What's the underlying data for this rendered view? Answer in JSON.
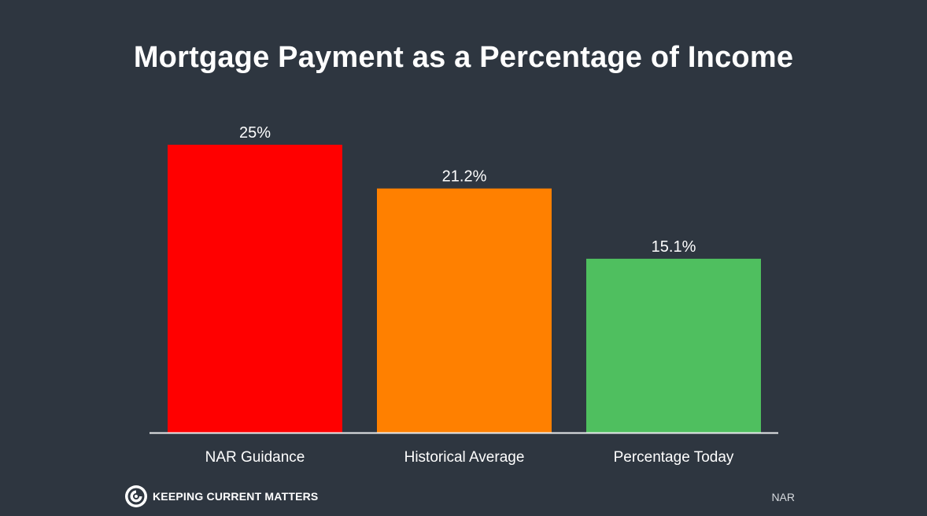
{
  "chart_data": {
    "type": "bar",
    "title": "Mortgage Payment as a Percentage of Income",
    "categories": [
      "NAR Guidance",
      "Historical Average",
      "Percentage Today"
    ],
    "values": [
      25,
      21.2,
      15.1
    ],
    "value_labels": [
      "25%",
      "21.2%",
      "15.1%"
    ],
    "colors": [
      "#ff0000",
      "#ff8000",
      "#4fbf5f"
    ],
    "ylim": [
      0,
      25
    ],
    "grid": false,
    "legend": "none",
    "xlabel": "",
    "ylabel": ""
  },
  "footer": {
    "brand": "Keeping Current Matters",
    "source": "NAR"
  }
}
